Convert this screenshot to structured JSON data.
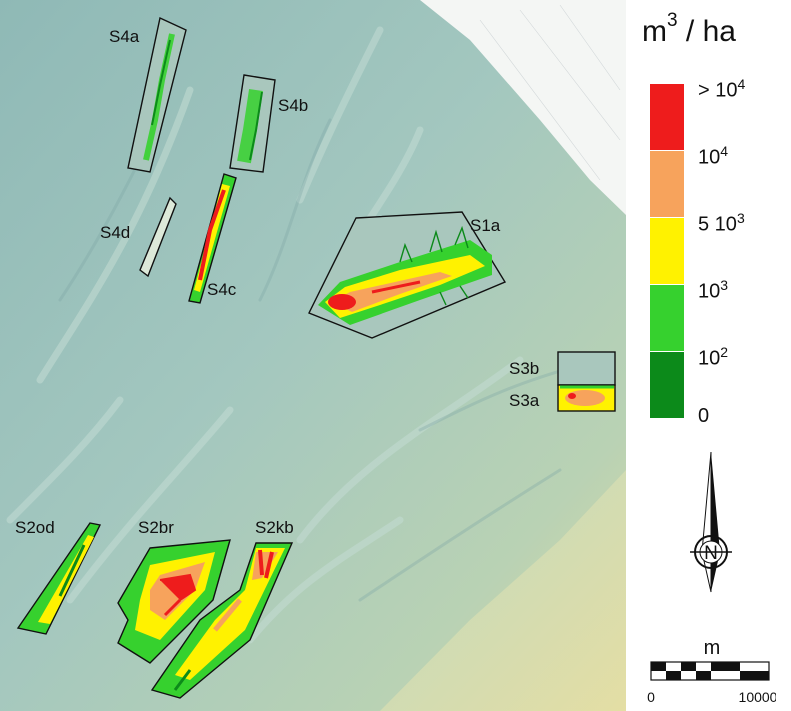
{
  "units": {
    "main": "m",
    "exp": "3",
    "rest": " / ha"
  },
  "legend": {
    "classes": [
      {
        "label": "> 10",
        "exp": "4",
        "color": "#ee1c1c"
      },
      {
        "label": "10",
        "exp": "4",
        "color": "#f7a35c"
      },
      {
        "label": "5 10",
        "exp": "3",
        "color": "#fff200"
      },
      {
        "label": "10",
        "exp": "3",
        "color": "#36d12e"
      },
      {
        "label": "10",
        "exp": "2",
        "color": "#0c8a1a"
      },
      {
        "label": "0",
        "exp": "",
        "color": ""
      }
    ]
  },
  "zones": {
    "s4a": "S4a",
    "s4b": "S4b",
    "s4d": "S4d",
    "s4c": "S4c",
    "s1a": "S1a",
    "s3b": "S3b",
    "s3a": "S3a",
    "s2od": "S2od",
    "s2br": "S2br",
    "s2kb": "S2kb"
  },
  "compass": {
    "letter": "N"
  },
  "scale_bar": {
    "unit": "m",
    "min_label": "0",
    "max_label": "10000"
  }
}
